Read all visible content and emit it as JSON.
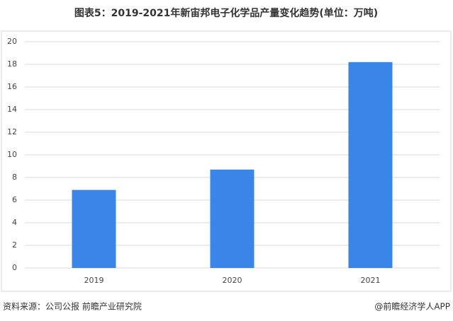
{
  "chart_data": {
    "type": "bar",
    "title": "图表5：2019-2021年新宙邦电子化学品产量变化趋势(单位：万吨)",
    "categories": [
      "2019",
      "2020",
      "2021"
    ],
    "values": [
      6.9,
      8.7,
      18.2
    ],
    "color": "#3a86e8",
    "ylim": [
      0,
      20
    ],
    "yticks": [
      0,
      2,
      4,
      6,
      8,
      10,
      12,
      14,
      16,
      18,
      20
    ],
    "grid": true,
    "source": "资料来源：公司公报 前瞻产业研究院",
    "credit": "@前瞻经济学人APP"
  }
}
